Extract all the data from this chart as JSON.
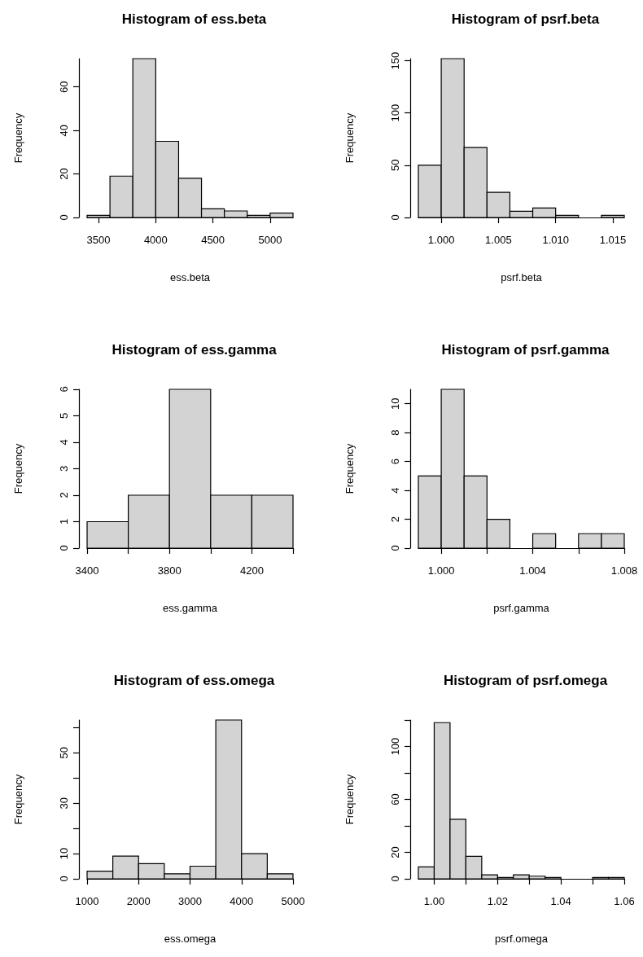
{
  "chart_data": [
    {
      "type": "histogram",
      "title": "Histogram of ess.beta",
      "xlabel": "ess.beta",
      "ylabel": "Frequency",
      "color": "#d3d3d3",
      "bins": [
        3400,
        3600,
        3800,
        4000,
        4200,
        4400,
        4600,
        4800,
        5000,
        5200
      ],
      "values": [
        1,
        19,
        73,
        35,
        18,
        4,
        3,
        1,
        2
      ],
      "xlim": [
        3400,
        5200
      ],
      "xticks": [
        3500,
        4000,
        4500,
        5000
      ],
      "ylim": [
        0,
        73
      ],
      "yticks": [
        0,
        20,
        40,
        60
      ]
    },
    {
      "type": "histogram",
      "title": "Histogram of psrf.beta",
      "xlabel": "psrf.beta",
      "ylabel": "Frequency",
      "color": "#d3d3d3",
      "bins": [
        0.998,
        1.0,
        1.002,
        1.004,
        1.006,
        1.008,
        1.01,
        1.012,
        1.014,
        1.016
      ],
      "values": [
        50,
        152,
        67,
        24,
        6,
        9,
        2,
        0,
        2
      ],
      "xlim": [
        0.998,
        1.016
      ],
      "xticks": [
        {
          "value": 1.0,
          "label": "1.000"
        },
        {
          "value": 1.005,
          "label": "1.005"
        },
        {
          "value": 1.01,
          "label": "1.010"
        },
        {
          "value": 1.015,
          "label": "1.015"
        }
      ],
      "ylim": [
        0,
        152
      ],
      "yticks": [
        0,
        50,
        100,
        150
      ]
    },
    {
      "type": "histogram",
      "title": "Histogram of ess.gamma",
      "xlabel": "ess.gamma",
      "ylabel": "Frequency",
      "color": "#d3d3d3",
      "bins": [
        3400,
        3600,
        3800,
        4000,
        4200,
        4400
      ],
      "values": [
        1,
        2,
        6,
        2,
        2
      ],
      "xlim": [
        3400,
        4400
      ],
      "xticks": [
        3400,
        {
          "value": 3600,
          "label": null
        },
        3800,
        {
          "value": 4000,
          "label": null
        },
        4200,
        {
          "value": 4400,
          "label": null
        }
      ],
      "ylim": [
        0,
        6
      ],
      "yticks": [
        0,
        1,
        2,
        3,
        4,
        5,
        6
      ]
    },
    {
      "type": "histogram",
      "title": "Histogram of psrf.gamma",
      "xlabel": "psrf.gamma",
      "ylabel": "Frequency",
      "color": "#d3d3d3",
      "bins": [
        0.999,
        1.0,
        1.001,
        1.002,
        1.003,
        1.004,
        1.005,
        1.006,
        1.007,
        1.008
      ],
      "values": [
        5,
        11,
        5,
        2,
        0,
        1,
        0,
        1,
        1
      ],
      "xlim": [
        0.999,
        1.008
      ],
      "xticks": [
        {
          "value": 1.0,
          "label": "1.000"
        },
        {
          "value": 1.002,
          "label": null
        },
        {
          "value": 1.004,
          "label": "1.004"
        },
        {
          "value": 1.006,
          "label": null
        },
        {
          "value": 1.008,
          "label": "1.008"
        }
      ],
      "ylim": [
        0,
        11
      ],
      "yticks": [
        0,
        2,
        4,
        6,
        8,
        10
      ]
    },
    {
      "type": "histogram",
      "title": "Histogram of ess.omega",
      "xlabel": "ess.omega",
      "ylabel": "Frequency",
      "color": "#d3d3d3",
      "bins": [
        1000,
        1500,
        2000,
        2500,
        3000,
        3500,
        4000,
        4500,
        5000
      ],
      "values": [
        3,
        9,
        6,
        2,
        5,
        63,
        10,
        2
      ],
      "xlim": [
        1000,
        5000
      ],
      "xticks": [
        1000,
        2000,
        3000,
        4000,
        5000
      ],
      "ylim": [
        0,
        63
      ],
      "yticks": [
        0,
        10,
        {
          "value": 20,
          "label": null
        },
        30,
        {
          "value": 40,
          "label": null
        },
        50,
        {
          "value": 60,
          "label": null
        }
      ]
    },
    {
      "type": "histogram",
      "title": "Histogram of psrf.omega",
      "xlabel": "psrf.omega",
      "ylabel": "Frequency",
      "color": "#d3d3d3",
      "bins": [
        0.995,
        1.0,
        1.005,
        1.01,
        1.015,
        1.02,
        1.025,
        1.03,
        1.035,
        1.04,
        1.045,
        1.05,
        1.055,
        1.06
      ],
      "values": [
        9,
        118,
        45,
        17,
        3,
        1,
        3,
        2,
        1,
        0,
        0,
        1,
        1
      ],
      "xlim": [
        0.995,
        1.06
      ],
      "xticks": [
        {
          "value": 1.0,
          "label": "1.00"
        },
        {
          "value": 1.01,
          "label": null
        },
        {
          "value": 1.02,
          "label": "1.02"
        },
        {
          "value": 1.03,
          "label": null
        },
        {
          "value": 1.04,
          "label": "1.04"
        },
        {
          "value": 1.05,
          "label": null
        },
        {
          "value": 1.06,
          "label": "1.06"
        }
      ],
      "ylim": [
        0,
        120
      ],
      "yticks": [
        0,
        20,
        {
          "value": 40,
          "label": null
        },
        60,
        {
          "value": 80,
          "label": null
        },
        100,
        {
          "value": 120,
          "label": null
        }
      ]
    }
  ]
}
